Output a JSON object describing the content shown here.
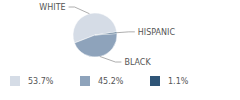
{
  "chart_data": {
    "type": "pie",
    "categories": [
      "WHITE",
      "BLACK",
      "HISPANIC"
    ],
    "values": [
      53.7,
      45.2,
      1.1
    ],
    "value_labels": [
      "53.7%",
      "45.2%",
      "1.1%"
    ],
    "colors": [
      "#d5dce6",
      "#8ea3bb",
      "#2f5577"
    ],
    "legend": "bottom"
  }
}
